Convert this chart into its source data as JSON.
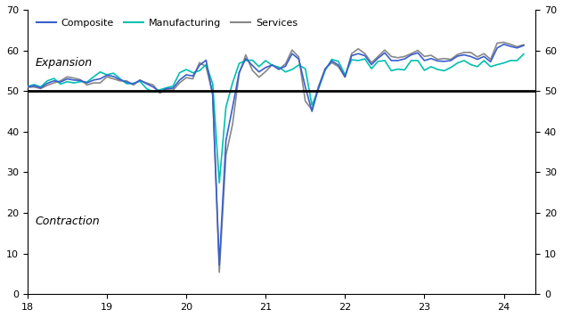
{
  "composite": [
    51.0,
    51.3,
    50.8,
    51.9,
    52.5,
    52.2,
    53.0,
    52.7,
    52.6,
    52.0,
    52.7,
    53.0,
    53.9,
    53.6,
    52.8,
    52.2,
    51.7,
    52.7,
    51.8,
    51.0,
    49.8,
    50.6,
    50.7,
    52.7,
    54.0,
    53.7,
    56.3,
    57.6,
    49.0,
    7.2,
    37.8,
    46.0,
    54.6,
    58.0,
    56.3,
    54.7,
    55.8,
    56.4,
    55.4,
    56.1,
    59.2,
    57.9,
    51.0,
    45.0,
    50.8,
    55.4,
    57.4,
    56.4,
    53.5,
    58.7,
    59.2,
    58.7,
    56.5,
    58.1,
    59.4,
    57.5,
    57.5,
    57.9,
    58.9,
    59.4,
    57.5,
    58.0,
    57.4,
    57.3,
    57.5,
    58.6,
    58.9,
    58.5,
    57.8,
    58.5,
    57.2,
    60.6,
    61.5,
    61.0,
    60.6,
    61.2
  ],
  "manufacturing": [
    51.1,
    51.6,
    51.0,
    52.5,
    53.1,
    51.7,
    52.3,
    52.0,
    52.3,
    52.2,
    53.5,
    54.7,
    54.0,
    54.4,
    53.0,
    51.8,
    51.9,
    52.4,
    50.6,
    49.8,
    50.3,
    50.8,
    51.2,
    54.5,
    55.3,
    54.5,
    55.0,
    56.5,
    51.8,
    27.4,
    46.0,
    52.0,
    56.8,
    57.5,
    57.6,
    56.0,
    57.5,
    56.3,
    55.9,
    54.7,
    55.3,
    56.4,
    55.5,
    46.5,
    50.6,
    55.1,
    57.8,
    57.3,
    54.0,
    57.7,
    57.5,
    57.9,
    55.5,
    57.3,
    57.5,
    55.0,
    55.4,
    55.2,
    57.5,
    57.5,
    55.1,
    56.0,
    55.3,
    55.0,
    55.8,
    56.9,
    57.5,
    56.5,
    56.0,
    57.5,
    56.0,
    56.5,
    56.9,
    57.5,
    57.5,
    59.1
  ],
  "services": [
    50.9,
    51.0,
    50.6,
    51.4,
    52.0,
    52.5,
    53.5,
    53.2,
    52.8,
    51.5,
    52.0,
    52.0,
    53.5,
    53.0,
    52.5,
    52.5,
    51.5,
    52.6,
    52.0,
    51.5,
    49.5,
    50.3,
    50.2,
    52.0,
    53.3,
    53.0,
    57.0,
    56.0,
    49.3,
    5.4,
    34.2,
    41.8,
    54.3,
    58.9,
    55.1,
    53.4,
    54.8,
    56.5,
    55.3,
    56.7,
    60.1,
    58.4,
    47.5,
    45.4,
    51.2,
    55.5,
    57.0,
    56.0,
    53.4,
    59.2,
    60.4,
    59.2,
    57.0,
    58.5,
    60.1,
    58.5,
    58.2,
    58.5,
    59.2,
    60.0,
    58.5,
    58.8,
    57.8,
    58.0,
    57.8,
    59.0,
    59.5,
    59.5,
    58.4,
    59.2,
    57.8,
    61.8,
    62.0,
    61.5,
    60.9,
    61.4
  ],
  "composite_color": "#3a5fcc",
  "manufacturing_color": "#00c0b0",
  "services_color": "#888888",
  "ylim": [
    0,
    70
  ],
  "yticks": [
    0,
    10,
    20,
    30,
    40,
    50,
    60,
    70
  ],
  "xticks": [
    2018,
    2019,
    2020,
    2021,
    2022,
    2023,
    2024
  ],
  "xticklabels": [
    "18",
    "19",
    "20",
    "21",
    "22",
    "23",
    "24"
  ],
  "expansion_label": "Expansion",
  "contraction_label": "Contraction",
  "legend_composite": "Composite",
  "legend_manufacturing": "Manufacturing",
  "legend_services": "Services"
}
